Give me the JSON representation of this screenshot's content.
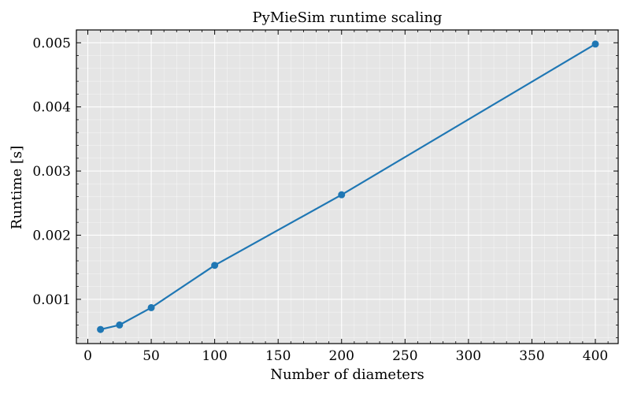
{
  "chart_data": {
    "type": "line",
    "title": "PyMieSim runtime scaling",
    "xlabel": "Number of diameters",
    "ylabel": "Runtime [s]",
    "xlim": [
      -9,
      418
    ],
    "ylim": [
      0.00031,
      0.0052
    ],
    "xticks": [
      0,
      50,
      100,
      150,
      200,
      250,
      300,
      350,
      400
    ],
    "xtick_labels": [
      "0",
      "50",
      "100",
      "150",
      "200",
      "250",
      "300",
      "350",
      "400"
    ],
    "yticks": [
      0.001,
      0.002,
      0.003,
      0.004,
      0.005
    ],
    "ytick_labels": [
      "0.001",
      "0.002",
      "0.003",
      "0.004",
      "0.005"
    ],
    "grid": true,
    "series": [
      {
        "color": "#1f77b4",
        "x": [
          10,
          25,
          50,
          100,
          200,
          400
        ],
        "y": [
          0.00053,
          0.0006,
          0.00087,
          0.00153,
          0.00263,
          0.00498
        ]
      }
    ],
    "colors": {
      "plot_background": "#e5e5e5",
      "grid": "#ffffff",
      "axes": "#000000"
    }
  }
}
